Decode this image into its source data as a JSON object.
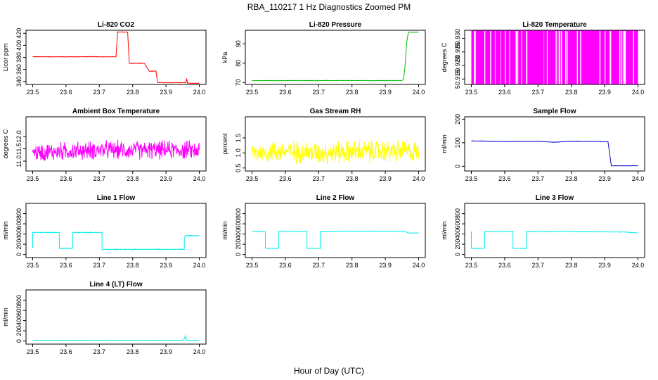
{
  "figure": {
    "title": "RBA_110217  1 Hz Diagnostics Zoomed PM",
    "xlabel": "Hour of Day (UTC)"
  },
  "chart_data": [
    {
      "type": "line",
      "title": "Li-820 CO2",
      "ylabel": "Licor ppm",
      "color": "#ff0000",
      "xlim": [
        23.5,
        24.0
      ],
      "xticks": [
        "23.5",
        "23.6",
        "23.7",
        "23.8",
        "23.9",
        "24.0"
      ],
      "ylim": [
        335,
        425
      ],
      "yticks": [
        "340",
        "360",
        "380",
        "400",
        "420"
      ],
      "x": [
        23.5,
        23.6,
        23.7,
        23.75,
        23.755,
        23.785,
        23.79,
        23.81,
        23.835,
        23.85,
        23.87,
        23.875,
        23.95,
        23.96,
        23.962,
        23.965,
        24.0
      ],
      "y": [
        381,
        381,
        381,
        381,
        422,
        422,
        370,
        370,
        370,
        357,
        357,
        338,
        338,
        338,
        345,
        337,
        337
      ],
      "noise": 0.6
    },
    {
      "type": "line",
      "title": "Li-820 Pressure",
      "ylabel": "kPa",
      "color": "#00bb00",
      "xlim": [
        23.5,
        24.0
      ],
      "xticks": [
        "23.5",
        "23.6",
        "23.7",
        "23.8",
        "23.9",
        "24.0"
      ],
      "ylim": [
        69,
        97
      ],
      "yticks": [
        "70",
        "80",
        "90"
      ],
      "x": [
        23.5,
        23.7,
        23.9,
        23.95,
        23.955,
        23.96,
        23.963,
        23.966,
        23.97,
        23.975,
        24.0
      ],
      "y": [
        71,
        71,
        71,
        71,
        72,
        80,
        88,
        93,
        96,
        96,
        96
      ],
      "noise": 0.15
    },
    {
      "type": "line",
      "title": "Li-820 Temperature",
      "ylabel": "degrees C",
      "color": "#ff00ff",
      "xlim": [
        23.5,
        24.0
      ],
      "xticks": [
        "23.5",
        "23.6",
        "23.7",
        "23.8",
        "23.9",
        "24.0"
      ],
      "ylim": [
        50.913,
        50.933
      ],
      "yticks": [
        "50.915",
        "50.920",
        "50.925",
        "50.930"
      ],
      "x": [
        23.5,
        24.0
      ],
      "y": [
        50.913,
        50.933
      ],
      "noise": 0,
      "style": "binary-toggle"
    },
    {
      "type": "line",
      "title": "Ambient Box Temperature",
      "ylabel": "degrees C",
      "color": "#ff00ff",
      "xlim": [
        23.5,
        24.0
      ],
      "xticks": [
        "23.5",
        "23.6",
        "23.7",
        "23.8",
        "23.9",
        "24.0"
      ],
      "ylim": [
        10.6,
        12.8
      ],
      "yticks": [
        "11.0",
        "11.5",
        "12.0"
      ],
      "x": [
        23.5,
        23.6,
        23.7,
        23.8,
        23.9,
        24.0
      ],
      "y": [
        11.35,
        11.4,
        11.45,
        11.45,
        11.45,
        11.45
      ],
      "noise": 0.45
    },
    {
      "type": "line",
      "title": "Gas Stream RH",
      "ylabel": "percent",
      "color": "#ffff00",
      "xlim": [
        23.5,
        24.0
      ],
      "xticks": [
        "23.5",
        "23.6",
        "23.7",
        "23.8",
        "23.9",
        "24.0"
      ],
      "ylim": [
        0.4,
        2.2
      ],
      "yticks": [
        "0.5",
        "1.0",
        "1.5"
      ],
      "x": [
        23.5,
        23.6,
        23.7,
        23.8,
        23.9,
        24.0
      ],
      "y": [
        1.0,
        1.05,
        1.0,
        1.05,
        1.05,
        1.05
      ],
      "noise": 0.45
    },
    {
      "type": "line",
      "title": "Sample Flow",
      "ylabel": "ml/min",
      "color": "#0000cc",
      "xlim": [
        23.5,
        24.0
      ],
      "xticks": [
        "23.5",
        "23.6",
        "23.7",
        "23.8",
        "23.9",
        "24.0"
      ],
      "ylim": [
        -20,
        210
      ],
      "yticks": [
        "0",
        "100",
        "200"
      ],
      "x": [
        23.5,
        23.6,
        23.7,
        23.75,
        23.8,
        23.85,
        23.91,
        23.915,
        23.92,
        24.0
      ],
      "y": [
        108,
        105,
        106,
        102,
        106,
        106,
        104,
        55,
        2,
        2
      ],
      "noise": 1.2
    },
    {
      "type": "line",
      "title": "Line 1 Flow",
      "ylabel": "ml/min",
      "color": "#00eeee",
      "xlim": [
        23.5,
        24.0
      ],
      "xticks": [
        "23.5",
        "23.6",
        "23.7",
        "23.8",
        "23.9",
        "24.0"
      ],
      "ylim": [
        -60,
        1000
      ],
      "yticks": [
        "0",
        "200",
        "400",
        "600",
        "800"
      ],
      "x": [
        23.5,
        23.5001,
        23.502,
        23.58,
        23.5801,
        23.62,
        23.6201,
        23.623,
        23.708,
        23.7081,
        23.955,
        23.9551,
        23.96,
        24.0
      ],
      "y": [
        130,
        430,
        430,
        430,
        120,
        120,
        430,
        430,
        430,
        100,
        100,
        340,
        370,
        370
      ],
      "noise": 10
    },
    {
      "type": "line",
      "title": "Line 2 Flow",
      "ylabel": "ml/min",
      "color": "#00eeee",
      "xlim": [
        23.5,
        24.0
      ],
      "xticks": [
        "23.5",
        "23.6",
        "23.7",
        "23.8",
        "23.9",
        "24.0"
      ],
      "ylim": [
        -60,
        1000
      ],
      "yticks": [
        "0",
        "200",
        "400",
        "600",
        "800"
      ],
      "x": [
        23.5,
        23.54,
        23.5401,
        23.58,
        23.5801,
        23.665,
        23.6651,
        23.705,
        23.7051,
        23.8,
        23.9,
        23.96,
        23.97,
        24.0
      ],
      "y": [
        450,
        450,
        120,
        120,
        450,
        450,
        120,
        120,
        450,
        455,
        455,
        450,
        420,
        420
      ],
      "noise": 6
    },
    {
      "type": "line",
      "title": "Line 3 Flow",
      "ylabel": "ml/min",
      "color": "#00eeee",
      "xlim": [
        23.5,
        24.0
      ],
      "xticks": [
        "23.5",
        "23.6",
        "23.7",
        "23.8",
        "23.9",
        "24.0"
      ],
      "ylim": [
        -60,
        1000
      ],
      "yticks": [
        "0",
        "200",
        "400",
        "600",
        "800"
      ],
      "x": [
        23.5,
        23.5001,
        23.502,
        23.54,
        23.5401,
        23.625,
        23.6251,
        23.665,
        23.6651,
        23.8,
        23.96,
        24.0
      ],
      "y": [
        450,
        120,
        120,
        120,
        450,
        450,
        120,
        120,
        450,
        450,
        440,
        420
      ],
      "noise": 7
    },
    {
      "type": "line",
      "title": "Line 4 (LT) Flow",
      "ylabel": "ml/min",
      "color": "#00eeee",
      "xlim": [
        23.5,
        24.0
      ],
      "xticks": [
        "23.5",
        "23.6",
        "23.7",
        "23.8",
        "23.9",
        "24.0"
      ],
      "ylim": [
        -60,
        1000
      ],
      "yticks": [
        "0",
        "200",
        "400",
        "600",
        "800"
      ],
      "x": [
        23.5,
        23.7,
        23.95,
        23.955,
        23.958,
        23.962,
        24.0
      ],
      "y": [
        15,
        15,
        15,
        40,
        100,
        15,
        15
      ],
      "noise": 3
    }
  ]
}
